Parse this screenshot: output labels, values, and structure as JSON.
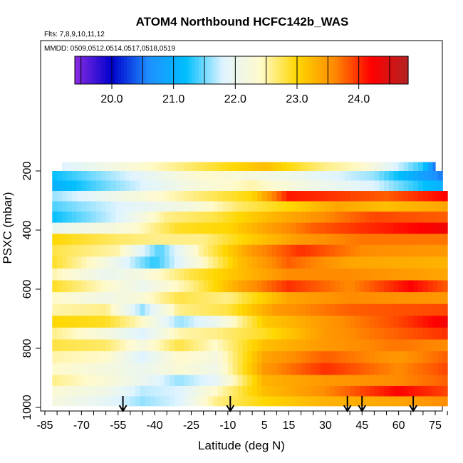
{
  "chart_data": {
    "type": "heatmap",
    "title": "ATOM4 Northbound HCFC142b_WAS",
    "flights_label": "Flts: 7,8,9,10,11,12",
    "dates_label": "MMDD: 0509,0512,0514,0517,0518,0519",
    "xlabel": "Latitude (deg N)",
    "ylabel": "PSXC (mbar)",
    "xlim": [
      -87,
      83
    ],
    "ylim": [
      1020,
      100
    ],
    "x_ticks": [
      -85,
      -70,
      -55,
      -40,
      -25,
      -10,
      5,
      15,
      30,
      45,
      60,
      75
    ],
    "y_ticks": [
      200,
      400,
      600,
      800,
      1000
    ],
    "colorbar": {
      "min": 19.4,
      "max": 24.8,
      "tick_values": [
        20.0,
        21.0,
        22.0,
        23.0,
        24.0
      ],
      "tick_labels": [
        "20.0",
        "21.0",
        "22.0",
        "23.0",
        "24.0"
      ],
      "colors": [
        "#8a2be2",
        "#0000cd",
        "#1e90ff",
        "#00bfff",
        "#e0f4ff",
        "#fffacd",
        "#ffd700",
        "#ff8c00",
        "#ff0000",
        "#b22222"
      ]
    },
    "sonde_markers_lat": [
      -53,
      -9,
      39,
      45,
      66
    ],
    "layers": [
      {
        "p": 185,
        "lat": [
          -78,
          5,
          30,
          45,
          70,
          75
        ],
        "val": [
          21.8,
          23.2,
          22.6,
          22.4,
          21.3,
          20.5
        ]
      },
      {
        "p": 215,
        "lat": [
          -82,
          -55,
          -20,
          20,
          50,
          78
        ],
        "val": [
          21.2,
          21.7,
          22.4,
          22.0,
          21.6,
          20.5
        ]
      },
      {
        "p": 250,
        "lat": [
          -82,
          -60,
          -25,
          0,
          25,
          50,
          78
        ],
        "val": [
          21.0,
          21.5,
          22.2,
          22.5,
          22.1,
          21.8,
          21.0
        ]
      },
      {
        "p": 285,
        "lat": [
          -82,
          -55,
          -25,
          0,
          15,
          30,
          55,
          80
        ],
        "val": [
          21.6,
          22.1,
          22.6,
          23.0,
          24.1,
          24.0,
          23.8,
          24.2
        ]
      },
      {
        "p": 320,
        "lat": [
          -82,
          -55,
          -25,
          -5,
          15,
          35,
          55,
          80
        ],
        "val": [
          21.4,
          21.8,
          22.2,
          22.7,
          23.0,
          23.4,
          23.2,
          23.4
        ]
      },
      {
        "p": 355,
        "lat": [
          -82,
          -55,
          -35,
          -15,
          10,
          30,
          50,
          80
        ],
        "val": [
          21.2,
          21.8,
          22.6,
          22.8,
          23.3,
          23.6,
          23.9,
          23.8
        ]
      },
      {
        "p": 395,
        "lat": [
          -82,
          -50,
          -30,
          -10,
          5,
          25,
          45,
          80
        ],
        "val": [
          22.0,
          22.3,
          22.9,
          23.0,
          23.4,
          23.8,
          24.0,
          24.3
        ]
      },
      {
        "p": 430,
        "lat": [
          -82,
          -55,
          -40,
          -20,
          0,
          20,
          45,
          80
        ],
        "val": [
          23.0,
          22.7,
          22.6,
          22.6,
          23.1,
          23.5,
          23.7,
          23.7
        ]
      },
      {
        "p": 470,
        "lat": [
          -82,
          -55,
          -38,
          -20,
          0,
          20,
          45,
          80
        ],
        "val": [
          22.8,
          22.5,
          21.4,
          22.6,
          23.5,
          24.0,
          23.6,
          23.5
        ]
      },
      {
        "p": 510,
        "lat": [
          -82,
          -60,
          -40,
          -20,
          -5,
          15,
          40,
          80
        ],
        "val": [
          22.9,
          22.2,
          21.3,
          22.4,
          23.2,
          23.8,
          23.4,
          23.3
        ]
      },
      {
        "p": 550,
        "lat": [
          -82,
          -60,
          -45,
          -25,
          -5,
          15,
          40,
          80
        ],
        "val": [
          22.5,
          22.0,
          22.2,
          22.8,
          23.2,
          23.6,
          23.6,
          23.4
        ]
      },
      {
        "p": 590,
        "lat": [
          -82,
          -60,
          -45,
          -25,
          -5,
          15,
          40,
          65,
          80
        ],
        "val": [
          22.9,
          22.4,
          22.0,
          22.6,
          23.4,
          24.0,
          23.6,
          24.2,
          23.8
        ]
      },
      {
        "p": 630,
        "lat": [
          -82,
          -60,
          -45,
          -30,
          -10,
          15,
          40,
          80
        ],
        "val": [
          22.4,
          22.1,
          22.3,
          22.8,
          22.6,
          23.4,
          23.6,
          23.5
        ]
      },
      {
        "p": 670,
        "lat": [
          -82,
          -60,
          -45,
          -30,
          -10,
          10,
          40,
          80
        ],
        "val": [
          22.5,
          22.6,
          21.6,
          22.6,
          22.8,
          23.5,
          23.8,
          23.9
        ]
      },
      {
        "p": 710,
        "lat": [
          -82,
          -60,
          -45,
          -30,
          -15,
          5,
          30,
          60,
          80
        ],
        "val": [
          23.0,
          22.9,
          22.4,
          21.6,
          22.0,
          23.1,
          23.5,
          23.9,
          24.3
        ]
      },
      {
        "p": 750,
        "lat": [
          -82,
          -60,
          -45,
          -30,
          -15,
          5,
          30,
          60,
          80
        ],
        "val": [
          22.6,
          22.2,
          21.8,
          22.5,
          22.6,
          22.9,
          23.5,
          23.8,
          24.0
        ]
      },
      {
        "p": 790,
        "lat": [
          -82,
          -60,
          -45,
          -30,
          -15,
          5,
          30,
          60,
          80
        ],
        "val": [
          22.8,
          22.7,
          22.2,
          22.8,
          22.4,
          23.2,
          23.5,
          23.7,
          23.6
        ]
      },
      {
        "p": 830,
        "lat": [
          -82,
          -60,
          -45,
          -30,
          -15,
          5,
          30,
          60,
          80
        ],
        "val": [
          22.5,
          22.4,
          21.8,
          22.4,
          22.2,
          23.4,
          23.8,
          23.5,
          23.8
        ]
      },
      {
        "p": 870,
        "lat": [
          -82,
          -60,
          -45,
          -30,
          -15,
          5,
          30,
          60,
          80
        ],
        "val": [
          22.4,
          22.2,
          22.0,
          22.3,
          22.1,
          23.5,
          24.0,
          23.6,
          23.9
        ]
      },
      {
        "p": 910,
        "lat": [
          -82,
          -60,
          -45,
          -30,
          -15,
          5,
          30,
          60,
          80
        ],
        "val": [
          22.6,
          22.3,
          22.0,
          21.6,
          21.9,
          23.3,
          23.5,
          23.6,
          23.8
        ]
      },
      {
        "p": 945,
        "lat": [
          -82,
          -60,
          -45,
          -30,
          -15,
          5,
          30,
          60,
          80
        ],
        "val": [
          22.3,
          22.1,
          21.7,
          21.8,
          22.4,
          23.2,
          23.6,
          24.2,
          23.9
        ]
      },
      {
        "p": 980,
        "lat": [
          -82,
          -60,
          -45,
          -30,
          -15,
          5,
          30,
          60,
          80
        ],
        "val": [
          22.2,
          21.9,
          21.6,
          21.8,
          22.6,
          23.0,
          23.3,
          23.4,
          23.6
        ]
      }
    ]
  }
}
